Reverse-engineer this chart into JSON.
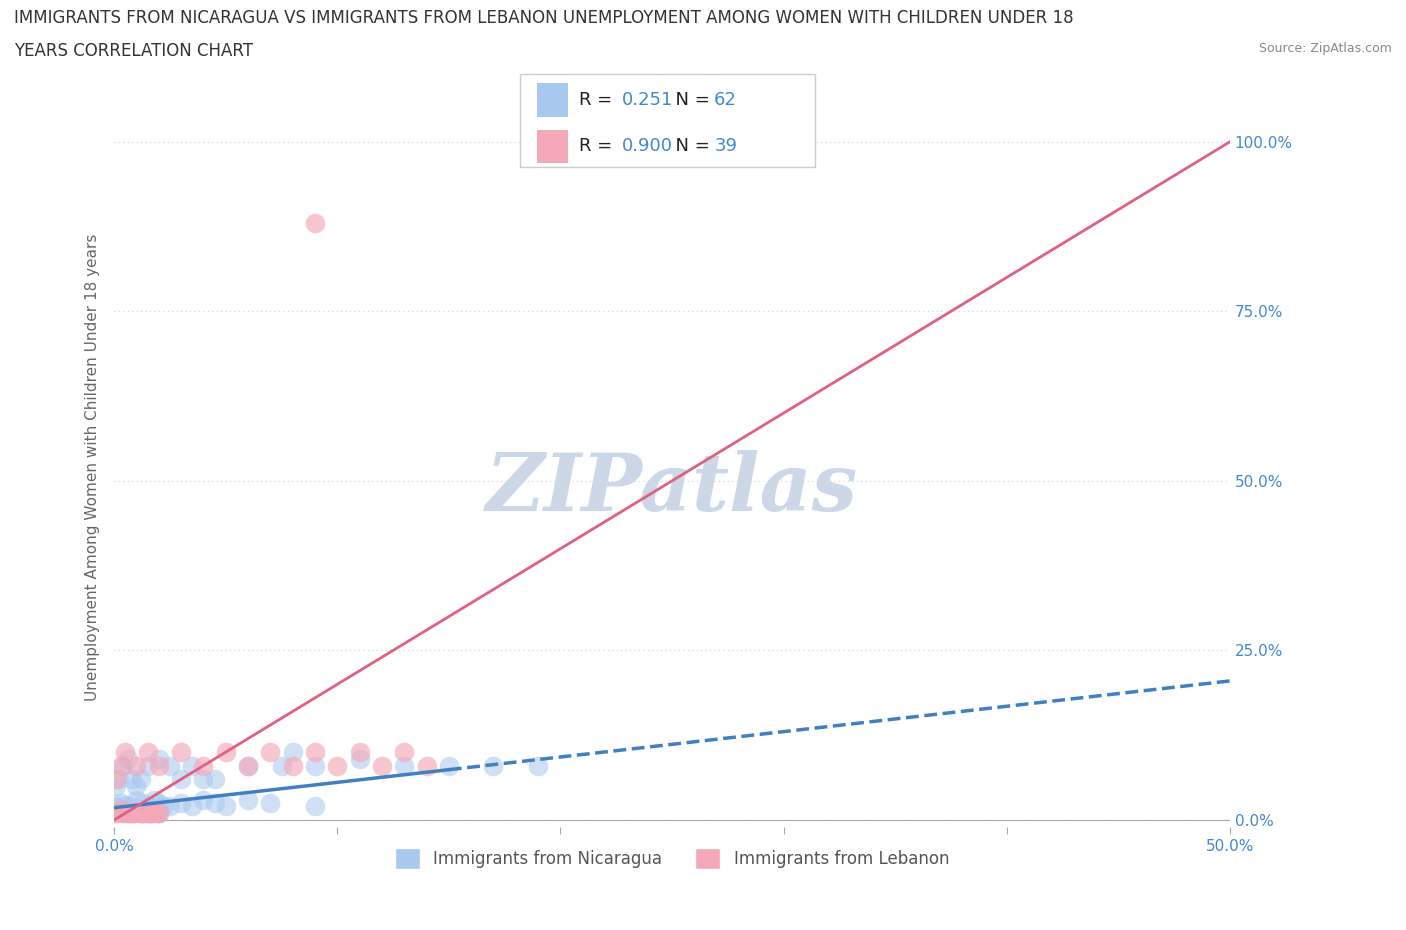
{
  "title_line1": "IMMIGRANTS FROM NICARAGUA VS IMMIGRANTS FROM LEBANON UNEMPLOYMENT AMONG WOMEN WITH CHILDREN UNDER 18",
  "title_line2": "YEARS CORRELATION CHART",
  "source": "Source: ZipAtlas.com",
  "ylabel": "Unemployment Among Women with Children Under 18 years",
  "xlim": [
    0,
    0.5
  ],
  "ylim": [
    -0.01,
    1.05
  ],
  "ytick_vals": [
    0.0,
    0.25,
    0.5,
    0.75,
    1.0
  ],
  "ytick_labels": [
    "0.0%",
    "25.0%",
    "50.0%",
    "75.0%",
    "100.0%"
  ],
  "xtick_vals": [
    0.0,
    0.1,
    0.2,
    0.3,
    0.4,
    0.5
  ],
  "xtick_labels_show": {
    "0.0": "0.0%",
    "0.5": "50.0%"
  },
  "nicaragua_R": "0.251",
  "nicaragua_N": "62",
  "lebanon_R": "0.900",
  "lebanon_N": "39",
  "nicaragua_scatter_color": "#a8c8f0",
  "lebanon_scatter_color": "#f4a8b8",
  "nicaragua_line_color": "#4080c0",
  "lebanon_line_color": "#e06080",
  "nicaragua_line_style": "solid",
  "lebanon_line_style": "solid",
  "watermark_text": "ZIPatlas",
  "watermark_color": "#ccd8e8",
  "grid_color": "#c8d0dc",
  "grid_style": "dotted",
  "background_color": "#ffffff",
  "tick_color": "#4488cc",
  "ylabel_color": "#666666",
  "title_color": "#333333",
  "source_color": "#888888",
  "legend_border_color": "#cccccc",
  "nicaragua_trend_x0": 0.0,
  "nicaragua_trend_x1": 0.5,
  "nicaragua_trend_y0": 0.018,
  "nicaragua_trend_y1": 0.205,
  "lebanon_trend_x0": 0.0,
  "lebanon_trend_x1": 0.5,
  "lebanon_trend_y0": 0.0,
  "lebanon_trend_y1": 1.0,
  "nicaragua_x": [
    0.001,
    0.002,
    0.003,
    0.004,
    0.005,
    0.006,
    0.007,
    0.008,
    0.009,
    0.01,
    0.011,
    0.012,
    0.013,
    0.014,
    0.015,
    0.016,
    0.017,
    0.018,
    0.019,
    0.02,
    0.001,
    0.003,
    0.005,
    0.007,
    0.01,
    0.013,
    0.015,
    0.018,
    0.02,
    0.022,
    0.025,
    0.03,
    0.035,
    0.04,
    0.045,
    0.05,
    0.06,
    0.07,
    0.08,
    0.09,
    0.001,
    0.002,
    0.004,
    0.006,
    0.008,
    0.01,
    0.012,
    0.015,
    0.02,
    0.025,
    0.03,
    0.035,
    0.04,
    0.045,
    0.06,
    0.075,
    0.09,
    0.11,
    0.13,
    0.15,
    0.17,
    0.19
  ],
  "nicaragua_y": [
    0.01,
    0.012,
    0.015,
    0.01,
    0.012,
    0.01,
    0.011,
    0.01,
    0.01,
    0.012,
    0.011,
    0.01,
    0.01,
    0.011,
    0.01,
    0.01,
    0.01,
    0.011,
    0.01,
    0.01,
    0.02,
    0.025,
    0.022,
    0.02,
    0.03,
    0.025,
    0.02,
    0.03,
    0.025,
    0.02,
    0.02,
    0.025,
    0.02,
    0.03,
    0.025,
    0.02,
    0.03,
    0.025,
    0.1,
    0.02,
    0.05,
    0.06,
    0.08,
    0.09,
    0.06,
    0.05,
    0.06,
    0.08,
    0.09,
    0.08,
    0.06,
    0.08,
    0.06,
    0.06,
    0.08,
    0.08,
    0.08,
    0.09,
    0.08,
    0.08,
    0.08,
    0.08
  ],
  "lebanon_x": [
    0.001,
    0.002,
    0.003,
    0.004,
    0.005,
    0.006,
    0.007,
    0.008,
    0.009,
    0.01,
    0.011,
    0.012,
    0.013,
    0.014,
    0.015,
    0.016,
    0.017,
    0.018,
    0.019,
    0.02,
    0.001,
    0.003,
    0.005,
    0.01,
    0.015,
    0.02,
    0.03,
    0.04,
    0.05,
    0.06,
    0.07,
    0.08,
    0.09,
    0.1,
    0.11,
    0.12,
    0.13,
    0.14,
    0.09
  ],
  "lebanon_y": [
    0.01,
    0.012,
    0.015,
    0.01,
    0.012,
    0.01,
    0.011,
    0.01,
    0.01,
    0.012,
    0.011,
    0.01,
    0.01,
    0.011,
    0.01,
    0.01,
    0.01,
    0.011,
    0.01,
    0.01,
    0.06,
    0.08,
    0.1,
    0.08,
    0.1,
    0.08,
    0.1,
    0.08,
    0.1,
    0.08,
    0.1,
    0.08,
    0.1,
    0.08,
    0.1,
    0.08,
    0.1,
    0.08,
    0.88
  ]
}
